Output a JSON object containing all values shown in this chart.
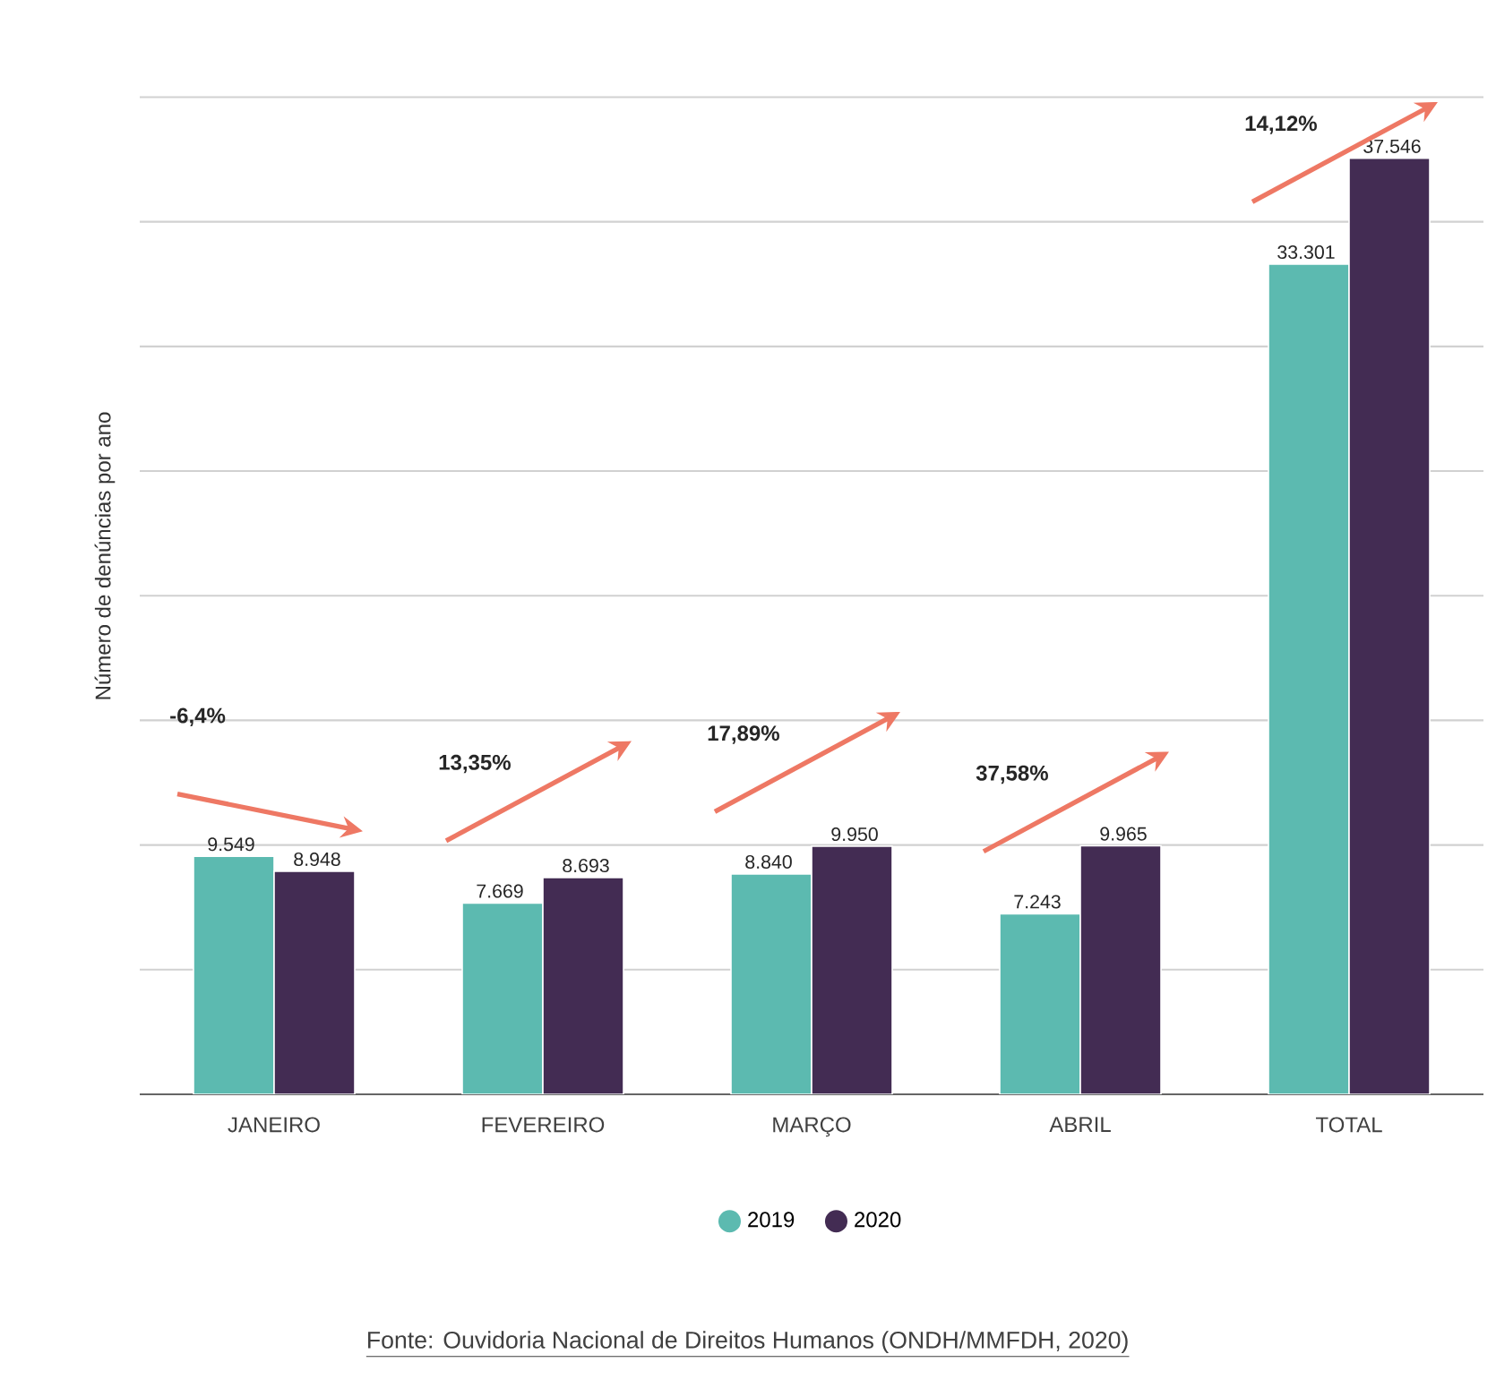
{
  "chart_data": {
    "type": "bar",
    "ylabel": "Número de denúncias por ano",
    "categories": [
      "JANEIRO",
      "FEVEREIRO",
      "MARÇO",
      "ABRIL",
      "TOTAL"
    ],
    "series": [
      {
        "name": "2019",
        "color": "#5cbab0",
        "values": [
          9549,
          7669,
          8840,
          7243,
          33301
        ],
        "value_labels": [
          "9.549",
          "7.669",
          "8.840",
          "7.243",
          "33.301"
        ]
      },
      {
        "name": "2020",
        "color": "#432c53",
        "values": [
          8948,
          8693,
          9950,
          9965,
          37546
        ],
        "value_labels": [
          "8.948",
          "8.693",
          "9.950",
          "9.965",
          "37.546"
        ]
      }
    ],
    "grid": "y",
    "legend": "bottom",
    "annotations": [
      "-6,4%",
      "13,35%",
      "17,89%",
      "37,58%",
      "14,12%",
      "Fonte: Ouvidoria Nacional de Direitos Humanos (ONDH/MMFDH, 2020)"
    ]
  }
}
